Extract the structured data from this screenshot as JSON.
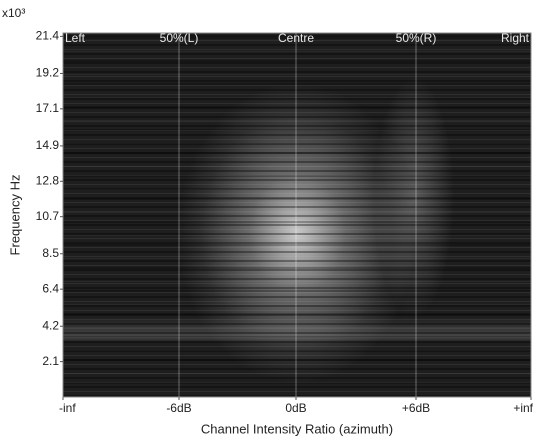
{
  "chart_data": {
    "type": "heatmap",
    "y_multiplier": "x10³",
    "y_label": "Frequency Hz",
    "x_label": "Channel Intensity Ratio (azimuth)",
    "categories": [
      "-inf",
      "-6dB",
      "0dB",
      "+6dB",
      "+inf"
    ],
    "top_labels": [
      "Left",
      "50%(L)",
      "Centre",
      "50%(R)",
      "Right"
    ],
    "ylim": [
      0,
      21.6
    ],
    "yticks": [
      2.1,
      4.2,
      6.4,
      8.5,
      10.7,
      12.8,
      14.9,
      17.1,
      19.2,
      21.4
    ]
  }
}
